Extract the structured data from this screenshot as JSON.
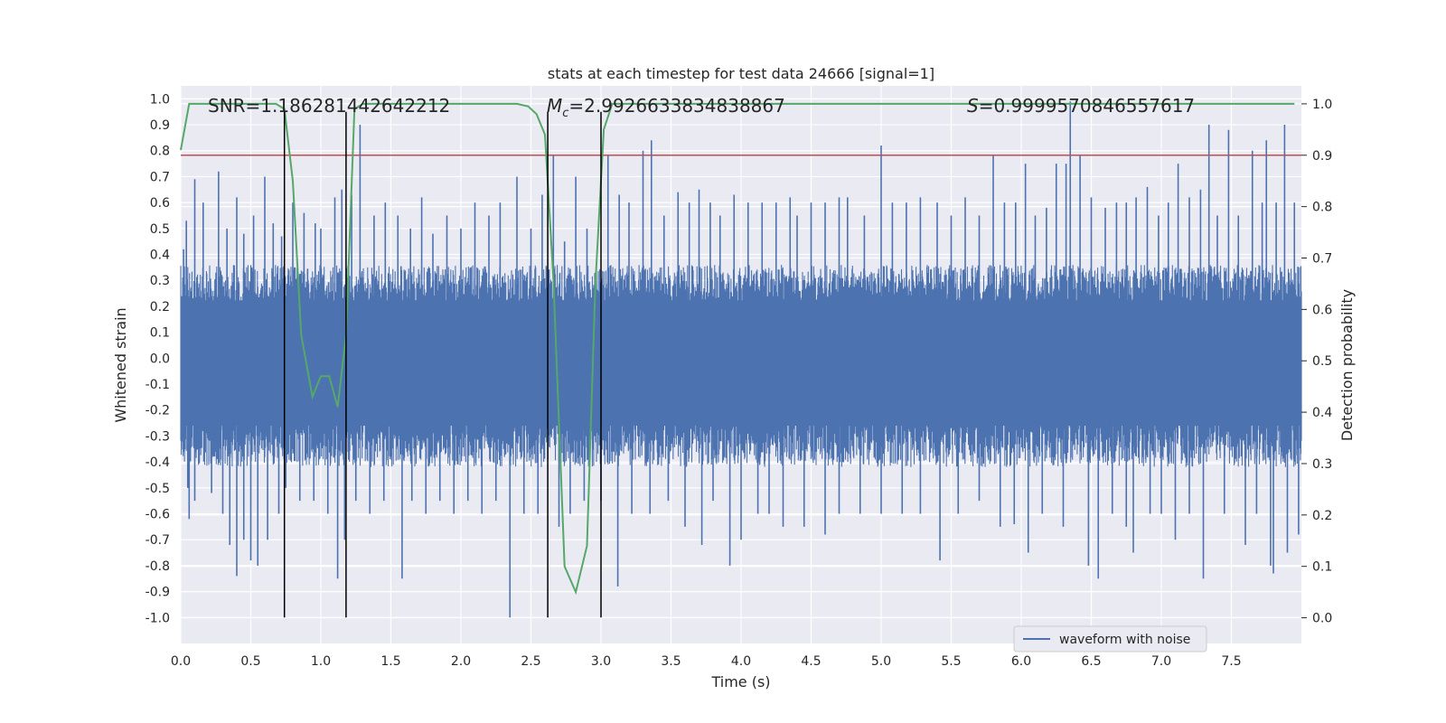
{
  "chart_data": {
    "type": "line",
    "title": "stats at each timestep for test data 24666 [signal=1]",
    "xlabel": "Time (s)",
    "ylabel_left": "Whitened strain",
    "ylabel_right": "Detection probability",
    "xlim": [
      0,
      8
    ],
    "ylim_left": [
      -1.1,
      1.05
    ],
    "ylim_right": [
      -0.05,
      1.035
    ],
    "x_ticks": [
      "0.0",
      "0.5",
      "1.0",
      "1.5",
      "2.0",
      "2.5",
      "3.0",
      "3.5",
      "4.0",
      "4.5",
      "5.0",
      "5.5",
      "6.0",
      "6.5",
      "7.0",
      "7.5"
    ],
    "y_ticks_left": [
      "1.0",
      "0.9",
      "0.8",
      "0.7",
      "0.6",
      "0.5",
      "0.4",
      "0.3",
      "0.2",
      "0.1",
      "0.0",
      "-0.1",
      "-0.2",
      "-0.3",
      "-0.4",
      "-0.5",
      "-0.6",
      "-0.7",
      "-0.8",
      "-0.9",
      "-1.0"
    ],
    "y_ticks_right": [
      "1.0",
      "0.9",
      "0.8",
      "0.7",
      "0.6",
      "0.5",
      "0.4",
      "0.3",
      "0.2",
      "0.1",
      "0.0"
    ],
    "grid": true,
    "annotations": {
      "snr": "SNR=1.186281442642212",
      "mc_symbol": "M",
      "mc_sub": "c",
      "mc_value": "=2.9926633834838867",
      "s_symbol": "S",
      "s_value": "=0.9999570846557617"
    },
    "legend": {
      "label": "waveform with noise",
      "location": "lower-right"
    },
    "threshold": {
      "value": 0.9,
      "axis": "right",
      "color": "#c44e52"
    },
    "vlines": [
      0.74,
      1.18,
      2.62,
      3.0
    ],
    "vline_range": [
      -1.0,
      0.95
    ],
    "waveform": {
      "name": "waveform with noise",
      "color": "#4c72b0",
      "envelope_pos": 0.36,
      "envelope_neg": -0.42,
      "spikes": [
        [
          0.02,
          0.42
        ],
        [
          0.04,
          0.53
        ],
        [
          0.1,
          0.69
        ],
        [
          0.16,
          0.6
        ],
        [
          0.27,
          0.72
        ],
        [
          0.33,
          0.5
        ],
        [
          0.4,
          0.62
        ],
        [
          0.45,
          0.48
        ],
        [
          0.52,
          0.55
        ],
        [
          0.6,
          0.7
        ],
        [
          0.66,
          0.52
        ],
        [
          0.72,
          0.47
        ],
        [
          0.8,
          0.6
        ],
        [
          0.88,
          0.56
        ],
        [
          0.96,
          0.52
        ],
        [
          1.0,
          0.5
        ],
        [
          1.1,
          0.62
        ],
        [
          1.15,
          0.65
        ],
        [
          1.22,
          0.63
        ],
        [
          1.28,
          0.9
        ],
        [
          1.38,
          0.55
        ],
        [
          1.46,
          0.6
        ],
        [
          1.55,
          0.55
        ],
        [
          1.64,
          0.5
        ],
        [
          1.72,
          0.62
        ],
        [
          1.8,
          0.48
        ],
        [
          1.9,
          0.55
        ],
        [
          2.0,
          0.5
        ],
        [
          2.1,
          0.6
        ],
        [
          2.2,
          0.55
        ],
        [
          2.28,
          0.6
        ],
        [
          2.4,
          0.7
        ],
        [
          2.5,
          0.5
        ],
        [
          2.58,
          0.63
        ],
        [
          2.66,
          0.78
        ],
        [
          2.74,
          0.45
        ],
        [
          2.82,
          0.7
        ],
        [
          2.9,
          0.5
        ],
        [
          3.05,
          0.78
        ],
        [
          3.13,
          0.63
        ],
        [
          3.2,
          0.6
        ],
        [
          3.3,
          0.8
        ],
        [
          3.36,
          0.84
        ],
        [
          3.45,
          0.55
        ],
        [
          3.55,
          0.64
        ],
        [
          3.63,
          0.6
        ],
        [
          3.7,
          0.65
        ],
        [
          3.78,
          0.6
        ],
        [
          3.85,
          0.55
        ],
        [
          3.95,
          0.63
        ],
        [
          4.05,
          0.6
        ],
        [
          4.15,
          0.6
        ],
        [
          4.25,
          0.6
        ],
        [
          4.35,
          0.62
        ],
        [
          4.4,
          0.55
        ],
        [
          4.5,
          0.6
        ],
        [
          4.6,
          0.6
        ],
        [
          4.7,
          0.62
        ],
        [
          4.76,
          0.62
        ],
        [
          4.88,
          0.55
        ],
        [
          5.0,
          0.82
        ],
        [
          5.08,
          0.6
        ],
        [
          5.18,
          0.6
        ],
        [
          5.28,
          0.62
        ],
        [
          5.4,
          0.6
        ],
        [
          5.5,
          0.55
        ],
        [
          5.6,
          0.62
        ],
        [
          5.7,
          0.55
        ],
        [
          5.8,
          0.78
        ],
        [
          5.88,
          0.6
        ],
        [
          5.96,
          0.6
        ],
        [
          6.03,
          0.75
        ],
        [
          6.1,
          0.55
        ],
        [
          6.18,
          0.58
        ],
        [
          6.25,
          0.75
        ],
        [
          6.32,
          0.75
        ],
        [
          6.35,
          0.99
        ],
        [
          6.42,
          0.78
        ],
        [
          6.5,
          0.62
        ],
        [
          6.6,
          0.58
        ],
        [
          6.68,
          0.6
        ],
        [
          6.75,
          0.6
        ],
        [
          6.82,
          0.62
        ],
        [
          6.9,
          0.66
        ],
        [
          6.98,
          0.55
        ],
        [
          7.05,
          0.6
        ],
        [
          7.12,
          0.75
        ],
        [
          7.2,
          0.62
        ],
        [
          7.28,
          0.65
        ],
        [
          7.34,
          0.9
        ],
        [
          7.4,
          0.55
        ],
        [
          7.48,
          0.88
        ],
        [
          7.55,
          0.55
        ],
        [
          7.65,
          0.8
        ],
        [
          7.72,
          0.6
        ],
        [
          7.75,
          0.84
        ],
        [
          7.82,
          0.6
        ],
        [
          7.88,
          0.9
        ],
        [
          7.95,
          0.6
        ]
      ],
      "neg_spikes": [
        [
          0.05,
          -0.5
        ],
        [
          0.06,
          -0.62
        ],
        [
          0.1,
          -0.55
        ],
        [
          0.22,
          -0.52
        ],
        [
          0.3,
          -0.6
        ],
        [
          0.35,
          -0.72
        ],
        [
          0.4,
          -0.84
        ],
        [
          0.45,
          -0.7
        ],
        [
          0.5,
          -0.78
        ],
        [
          0.55,
          -0.8
        ],
        [
          0.62,
          -0.7
        ],
        [
          0.7,
          -0.6
        ],
        [
          0.75,
          -0.5
        ],
        [
          0.85,
          -0.55
        ],
        [
          0.95,
          -0.55
        ],
        [
          1.05,
          -0.6
        ],
        [
          1.12,
          -0.85
        ],
        [
          1.17,
          -0.7
        ],
        [
          1.25,
          -0.55
        ],
        [
          1.35,
          -0.6
        ],
        [
          1.45,
          -0.55
        ],
        [
          1.58,
          -0.85
        ],
        [
          1.65,
          -0.55
        ],
        [
          1.75,
          -0.6
        ],
        [
          1.85,
          -0.55
        ],
        [
          1.95,
          -0.6
        ],
        [
          2.05,
          -0.55
        ],
        [
          2.15,
          -0.6
        ],
        [
          2.25,
          -0.55
        ],
        [
          2.35,
          -1.0
        ],
        [
          2.45,
          -0.6
        ],
        [
          2.55,
          -0.6
        ],
        [
          2.7,
          -0.65
        ],
        [
          2.78,
          -0.6
        ],
        [
          2.88,
          -0.55
        ],
        [
          3.0,
          -0.55
        ],
        [
          3.12,
          -0.88
        ],
        [
          3.22,
          -0.6
        ],
        [
          3.35,
          -0.6
        ],
        [
          3.48,
          -0.55
        ],
        [
          3.6,
          -0.65
        ],
        [
          3.72,
          -0.72
        ],
        [
          3.8,
          -0.55
        ],
        [
          3.92,
          -0.8
        ],
        [
          4.0,
          -0.7
        ],
        [
          4.12,
          -0.6
        ],
        [
          4.2,
          -0.6
        ],
        [
          4.3,
          -0.65
        ],
        [
          4.45,
          -0.65
        ],
        [
          4.6,
          -0.68
        ],
        [
          4.7,
          -0.6
        ],
        [
          4.85,
          -0.6
        ],
        [
          5.0,
          -0.6
        ],
        [
          5.15,
          -0.6
        ],
        [
          5.28,
          -0.6
        ],
        [
          5.42,
          -0.78
        ],
        [
          5.55,
          -0.6
        ],
        [
          5.7,
          -0.55
        ],
        [
          5.85,
          -0.65
        ],
        [
          5.95,
          -0.64
        ],
        [
          6.05,
          -0.75
        ],
        [
          6.15,
          -0.6
        ],
        [
          6.3,
          -0.65
        ],
        [
          6.48,
          -0.8
        ],
        [
          6.55,
          -0.85
        ],
        [
          6.65,
          -0.6
        ],
        [
          6.75,
          -0.65
        ],
        [
          6.8,
          -0.75
        ],
        [
          6.92,
          -0.6
        ],
        [
          7.0,
          -0.6
        ],
        [
          7.1,
          -0.7
        ],
        [
          7.2,
          -0.6
        ],
        [
          7.3,
          -0.85
        ],
        [
          7.45,
          -0.6
        ],
        [
          7.6,
          -0.72
        ],
        [
          7.68,
          -0.6
        ],
        [
          7.78,
          -0.8
        ],
        [
          7.8,
          -0.83
        ],
        [
          7.9,
          -0.75
        ],
        [
          7.98,
          -0.68
        ]
      ]
    },
    "probability": {
      "name": "detection probability",
      "color": "#55a868",
      "x": [
        0.0,
        0.06,
        0.12,
        0.2,
        0.3,
        0.4,
        0.5,
        0.6,
        0.68,
        0.74,
        0.8,
        0.86,
        0.94,
        1.0,
        1.06,
        1.12,
        1.18,
        1.24,
        1.3,
        1.4,
        1.6,
        2.0,
        2.3,
        2.4,
        2.48,
        2.54,
        2.6,
        2.66,
        2.74,
        2.82,
        2.9,
        2.96,
        3.02,
        3.08,
        3.2,
        3.5,
        4.0,
        5.0,
        6.0,
        7.0,
        7.95
      ],
      "y": [
        0.91,
        1.0,
        1.0,
        1.0,
        1.0,
        1.0,
        1.0,
        1.0,
        1.0,
        0.99,
        0.85,
        0.55,
        0.43,
        0.47,
        0.47,
        0.41,
        0.55,
        0.99,
        1.0,
        1.0,
        1.0,
        1.0,
        1.0,
        1.0,
        0.995,
        0.98,
        0.94,
        0.66,
        0.1,
        0.05,
        0.14,
        0.65,
        0.95,
        1.0,
        1.0,
        1.0,
        1.0,
        1.0,
        1.0,
        1.0,
        1.0
      ]
    }
  }
}
